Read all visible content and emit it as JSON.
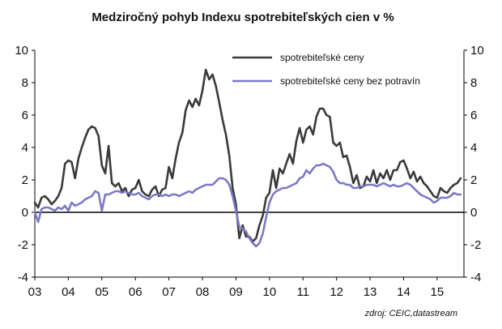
{
  "chart_data": {
    "type": "line",
    "title": "Medziročný pohyb Indexu spotrebiteľských cien v %",
    "source": "zdroj: CEIC,datastream",
    "xlabel": "",
    "ylabel": "",
    "ylim": [
      -4,
      10
    ],
    "yticks": [
      "-4",
      "-2",
      "0",
      "2",
      "4",
      "6",
      "8",
      "10"
    ],
    "xlim": [
      2003.0,
      2015.8
    ],
    "xticks": [
      "03",
      "04",
      "05",
      "06",
      "07",
      "08",
      "09",
      "10",
      "11",
      "12",
      "13",
      "14",
      "15"
    ],
    "legend_position": "top-right",
    "grid": false,
    "series": [
      {
        "name": "spotrebiteľské ceny",
        "color": "#3a3a3a",
        "points": [
          [
            2003.0,
            0.6
          ],
          [
            2003.1,
            0.3
          ],
          [
            2003.2,
            0.9
          ],
          [
            2003.3,
            1.0
          ],
          [
            2003.4,
            0.8
          ],
          [
            2003.5,
            0.5
          ],
          [
            2003.6,
            0.7
          ],
          [
            2003.7,
            1.0
          ],
          [
            2003.8,
            1.5
          ],
          [
            2003.9,
            3.0
          ],
          [
            2004.0,
            3.2
          ],
          [
            2004.1,
            3.1
          ],
          [
            2004.2,
            2.1
          ],
          [
            2004.3,
            3.3
          ],
          [
            2004.4,
            4.0
          ],
          [
            2004.5,
            4.6
          ],
          [
            2004.6,
            5.1
          ],
          [
            2004.7,
            5.3
          ],
          [
            2004.8,
            5.2
          ],
          [
            2004.9,
            4.7
          ],
          [
            2005.0,
            2.9
          ],
          [
            2005.1,
            2.4
          ],
          [
            2005.2,
            4.1
          ],
          [
            2005.3,
            1.8
          ],
          [
            2005.4,
            1.6
          ],
          [
            2005.5,
            1.8
          ],
          [
            2005.6,
            1.3
          ],
          [
            2005.7,
            1.5
          ],
          [
            2005.8,
            1.0
          ],
          [
            2005.9,
            1.4
          ],
          [
            2006.0,
            1.5
          ],
          [
            2006.1,
            2.0
          ],
          [
            2006.2,
            1.3
          ],
          [
            2006.3,
            1.1
          ],
          [
            2006.4,
            1.0
          ],
          [
            2006.5,
            1.4
          ],
          [
            2006.6,
            1.6
          ],
          [
            2006.7,
            1.0
          ],
          [
            2006.8,
            1.4
          ],
          [
            2006.9,
            1.5
          ],
          [
            2007.0,
            2.8
          ],
          [
            2007.1,
            2.1
          ],
          [
            2007.2,
            3.3
          ],
          [
            2007.3,
            4.3
          ],
          [
            2007.4,
            4.9
          ],
          [
            2007.5,
            6.3
          ],
          [
            2007.6,
            6.9
          ],
          [
            2007.7,
            6.5
          ],
          [
            2007.8,
            7.0
          ],
          [
            2007.9,
            6.6
          ],
          [
            2008.0,
            7.5
          ],
          [
            2008.1,
            8.8
          ],
          [
            2008.2,
            8.2
          ],
          [
            2008.3,
            8.5
          ],
          [
            2008.4,
            7.8
          ],
          [
            2008.5,
            6.8
          ],
          [
            2008.6,
            5.7
          ],
          [
            2008.7,
            4.8
          ],
          [
            2008.8,
            3.5
          ],
          [
            2008.9,
            1.5
          ],
          [
            2009.0,
            0.5
          ],
          [
            2009.1,
            -1.6
          ],
          [
            2009.2,
            -0.8
          ],
          [
            2009.3,
            -1.5
          ],
          [
            2009.4,
            -1.5
          ],
          [
            2009.5,
            -1.8
          ],
          [
            2009.6,
            -1.6
          ],
          [
            2009.7,
            -0.8
          ],
          [
            2009.8,
            -0.2
          ],
          [
            2009.9,
            0.9
          ],
          [
            2010.0,
            1.2
          ],
          [
            2010.1,
            2.6
          ],
          [
            2010.2,
            1.5
          ],
          [
            2010.3,
            2.7
          ],
          [
            2010.4,
            2.4
          ],
          [
            2010.5,
            3.0
          ],
          [
            2010.6,
            3.6
          ],
          [
            2010.7,
            3.0
          ],
          [
            2010.8,
            4.4
          ],
          [
            2010.9,
            5.2
          ],
          [
            2011.0,
            4.3
          ],
          [
            2011.1,
            5.1
          ],
          [
            2011.2,
            5.3
          ],
          [
            2011.3,
            4.8
          ],
          [
            2011.4,
            5.9
          ],
          [
            2011.5,
            6.4
          ],
          [
            2011.6,
            6.4
          ],
          [
            2011.7,
            6.0
          ],
          [
            2011.8,
            5.9
          ],
          [
            2011.9,
            4.3
          ],
          [
            2012.0,
            4.1
          ],
          [
            2012.1,
            4.3
          ],
          [
            2012.2,
            3.4
          ],
          [
            2012.3,
            3.5
          ],
          [
            2012.4,
            2.8
          ],
          [
            2012.5,
            1.8
          ],
          [
            2012.6,
            2.3
          ],
          [
            2012.7,
            1.5
          ],
          [
            2012.8,
            1.6
          ],
          [
            2012.9,
            2.2
          ],
          [
            2013.0,
            1.9
          ],
          [
            2013.1,
            2.6
          ],
          [
            2013.2,
            1.8
          ],
          [
            2013.3,
            2.4
          ],
          [
            2013.4,
            2.1
          ],
          [
            2013.5,
            2.6
          ],
          [
            2013.6,
            2.0
          ],
          [
            2013.7,
            2.6
          ],
          [
            2013.8,
            2.6
          ],
          [
            2013.9,
            3.1
          ],
          [
            2014.0,
            3.2
          ],
          [
            2014.1,
            2.7
          ],
          [
            2014.2,
            2.1
          ],
          [
            2014.3,
            2.5
          ],
          [
            2014.4,
            1.9
          ],
          [
            2014.5,
            2.2
          ],
          [
            2014.6,
            1.8
          ],
          [
            2014.7,
            1.6
          ],
          [
            2014.8,
            1.3
          ],
          [
            2014.9,
            1.0
          ],
          [
            2015.0,
            0.9
          ],
          [
            2015.1,
            1.5
          ],
          [
            2015.2,
            1.3
          ],
          [
            2015.3,
            1.2
          ],
          [
            2015.4,
            1.5
          ],
          [
            2015.5,
            1.7
          ],
          [
            2015.6,
            1.8
          ],
          [
            2015.7,
            2.1
          ]
        ]
      },
      {
        "name": "spotrebiteľské ceny bez potravín",
        "color": "#7b78c8",
        "points": [
          [
            2003.0,
            0.0
          ],
          [
            2003.1,
            -0.6
          ],
          [
            2003.2,
            0.2
          ],
          [
            2003.3,
            0.3
          ],
          [
            2003.4,
            0.3
          ],
          [
            2003.5,
            0.2
          ],
          [
            2003.6,
            0.1
          ],
          [
            2003.7,
            0.3
          ],
          [
            2003.8,
            0.2
          ],
          [
            2003.9,
            0.4
          ],
          [
            2004.0,
            0.1
          ],
          [
            2004.1,
            0.6
          ],
          [
            2004.2,
            0.4
          ],
          [
            2004.3,
            0.5
          ],
          [
            2004.4,
            0.6
          ],
          [
            2004.5,
            0.8
          ],
          [
            2004.6,
            0.9
          ],
          [
            2004.7,
            1.0
          ],
          [
            2004.8,
            1.3
          ],
          [
            2004.9,
            1.2
          ],
          [
            2005.0,
            0.1
          ],
          [
            2005.1,
            1.1
          ],
          [
            2005.2,
            1.1
          ],
          [
            2005.3,
            1.2
          ],
          [
            2005.4,
            1.3
          ],
          [
            2005.5,
            1.3
          ],
          [
            2005.6,
            1.2
          ],
          [
            2005.7,
            1.3
          ],
          [
            2005.8,
            1.2
          ],
          [
            2005.9,
            1.1
          ],
          [
            2006.0,
            1.1
          ],
          [
            2006.1,
            1.2
          ],
          [
            2006.2,
            1.0
          ],
          [
            2006.3,
            0.9
          ],
          [
            2006.4,
            0.8
          ],
          [
            2006.5,
            1.0
          ],
          [
            2006.6,
            1.1
          ],
          [
            2006.7,
            1.1
          ],
          [
            2006.8,
            1.0
          ],
          [
            2006.9,
            1.1
          ],
          [
            2007.0,
            1.0
          ],
          [
            2007.1,
            1.1
          ],
          [
            2007.2,
            1.1
          ],
          [
            2007.3,
            1.0
          ],
          [
            2007.4,
            1.1
          ],
          [
            2007.5,
            1.2
          ],
          [
            2007.6,
            1.3
          ],
          [
            2007.7,
            1.2
          ],
          [
            2007.8,
            1.4
          ],
          [
            2007.9,
            1.5
          ],
          [
            2008.0,
            1.6
          ],
          [
            2008.1,
            1.7
          ],
          [
            2008.2,
            1.7
          ],
          [
            2008.3,
            1.7
          ],
          [
            2008.4,
            1.9
          ],
          [
            2008.5,
            2.1
          ],
          [
            2008.6,
            2.1
          ],
          [
            2008.7,
            2.0
          ],
          [
            2008.8,
            1.7
          ],
          [
            2008.9,
            1.0
          ],
          [
            2009.0,
            0.1
          ],
          [
            2009.1,
            -0.9
          ],
          [
            2009.2,
            -1.0
          ],
          [
            2009.3,
            -1.2
          ],
          [
            2009.4,
            -1.6
          ],
          [
            2009.5,
            -1.9
          ],
          [
            2009.6,
            -2.1
          ],
          [
            2009.7,
            -1.9
          ],
          [
            2009.8,
            -1.3
          ],
          [
            2009.9,
            -0.3
          ],
          [
            2010.0,
            0.6
          ],
          [
            2010.1,
            1.1
          ],
          [
            2010.2,
            1.3
          ],
          [
            2010.3,
            1.4
          ],
          [
            2010.4,
            1.5
          ],
          [
            2010.5,
            1.5
          ],
          [
            2010.6,
            1.6
          ],
          [
            2010.7,
            1.7
          ],
          [
            2010.8,
            1.8
          ],
          [
            2010.9,
            2.1
          ],
          [
            2011.0,
            2.2
          ],
          [
            2011.1,
            2.6
          ],
          [
            2011.2,
            2.4
          ],
          [
            2011.3,
            2.7
          ],
          [
            2011.4,
            2.9
          ],
          [
            2011.5,
            2.9
          ],
          [
            2011.6,
            3.0
          ],
          [
            2011.7,
            2.9
          ],
          [
            2011.8,
            2.8
          ],
          [
            2011.9,
            2.5
          ],
          [
            2012.0,
            2.0
          ],
          [
            2012.1,
            1.8
          ],
          [
            2012.2,
            1.8
          ],
          [
            2012.3,
            1.7
          ],
          [
            2012.4,
            1.7
          ],
          [
            2012.5,
            1.5
          ],
          [
            2012.6,
            1.5
          ],
          [
            2012.7,
            1.6
          ],
          [
            2012.8,
            1.6
          ],
          [
            2012.9,
            1.7
          ],
          [
            2013.0,
            1.7
          ],
          [
            2013.1,
            1.7
          ],
          [
            2013.2,
            1.6
          ],
          [
            2013.3,
            1.7
          ],
          [
            2013.4,
            1.8
          ],
          [
            2013.5,
            1.7
          ],
          [
            2013.6,
            1.6
          ],
          [
            2013.7,
            1.7
          ],
          [
            2013.8,
            1.6
          ],
          [
            2013.9,
            1.6
          ],
          [
            2014.0,
            1.7
          ],
          [
            2014.1,
            1.8
          ],
          [
            2014.2,
            1.7
          ],
          [
            2014.3,
            1.5
          ],
          [
            2014.4,
            1.3
          ],
          [
            2014.5,
            1.1
          ],
          [
            2014.6,
            1.0
          ],
          [
            2014.7,
            0.9
          ],
          [
            2014.8,
            0.8
          ],
          [
            2014.9,
            0.6
          ],
          [
            2015.0,
            0.7
          ],
          [
            2015.1,
            0.9
          ],
          [
            2015.2,
            0.9
          ],
          [
            2015.3,
            0.9
          ],
          [
            2015.4,
            1.0
          ],
          [
            2015.5,
            1.2
          ],
          [
            2015.6,
            1.1
          ],
          [
            2015.7,
            1.1
          ]
        ]
      }
    ]
  }
}
